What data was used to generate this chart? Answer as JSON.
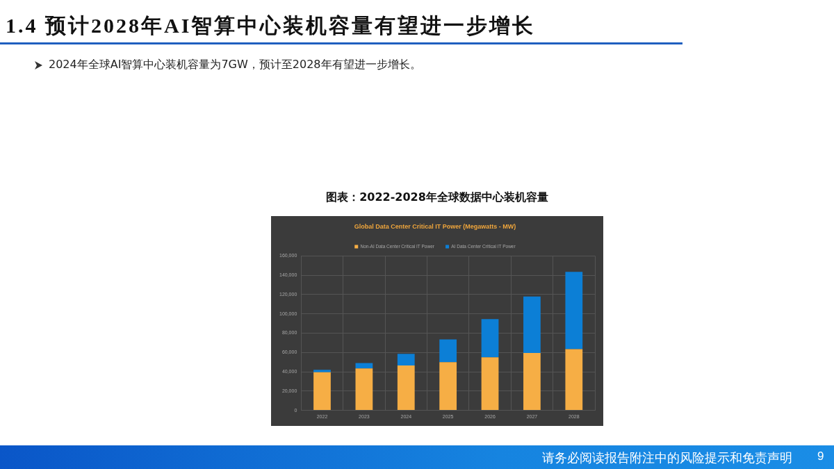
{
  "chart_data": {
    "type": "bar",
    "title": "Global Data Center Critical IT Power (Megawatts - MW)",
    "subtitle": "图表：2022-2028年全球数据中心装机容量",
    "annotations": [
      "1.4 预计2028年AI智算中心装机容量有望进一步增长",
      "2024年全球AI智算中心装机容量为7GW，预计至2028年有望进一步增长。",
      "请务必阅读报告附注中的风险提示和免责声明",
      "9"
    ],
    "categories": [
      "2022",
      "2023",
      "2024",
      "2025",
      "2026",
      "2027",
      "2028"
    ],
    "series": [
      {
        "name": "Non-AI Data Center Critical IT Power",
        "color": "#f6ae45",
        "values": [
          39500,
          43500,
          46500,
          50000,
          55000,
          59500,
          63500
        ]
      },
      {
        "name": "AI Data Center Critical IT Power",
        "color": "#0c7fd6",
        "values": [
          2500,
          5500,
          12000,
          23500,
          39500,
          58500,
          80000
        ]
      }
    ],
    "stacked": true,
    "ylim": [
      0,
      160000
    ],
    "yticks": [
      0,
      {
        "value": 20000,
        "label": "20,000"
      },
      {
        "value": 40000,
        "label": "40,000"
      },
      {
        "value": 60000,
        "label": "60,000"
      },
      {
        "value": 80000,
        "label": "80,000"
      },
      {
        "value": 100000,
        "label": "100,000"
      },
      {
        "value": 120000,
        "label": "120,000"
      },
      {
        "value": 140000,
        "label": "140,000"
      },
      {
        "value": 160000,
        "label": "160,000"
      }
    ],
    "grid": true,
    "legend": "top"
  }
}
